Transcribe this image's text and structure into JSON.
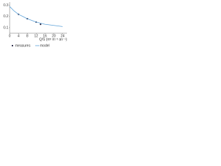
{
  "chart_data": {
    "type": "line",
    "x_label": "Q/S (m³ m⁻² an⁻¹)",
    "xlim": [
      0,
      26
    ],
    "xticks": [
      0,
      4,
      8,
      12,
      16,
      20,
      24
    ],
    "ylim": [
      0.05,
      0.33
    ],
    "yticks": [
      0.1,
      0.2,
      0.3
    ],
    "series": [
      {
        "name": "measures",
        "type": "scatter",
        "color": "#1a1a3a",
        "x": [
          4,
          8,
          12,
          14
        ],
        "values": [
          0.22,
          0.18,
          0.15,
          0.13
        ]
      },
      {
        "name": "model",
        "type": "line",
        "color": "#5aa0d8",
        "x": [
          0,
          2,
          4,
          6,
          8,
          10,
          12,
          16,
          20,
          24
        ],
        "values": [
          0.29,
          0.25,
          0.22,
          0.2,
          0.18,
          0.165,
          0.15,
          0.13,
          0.12,
          0.11
        ]
      }
    ],
    "legend": "bottom"
  }
}
